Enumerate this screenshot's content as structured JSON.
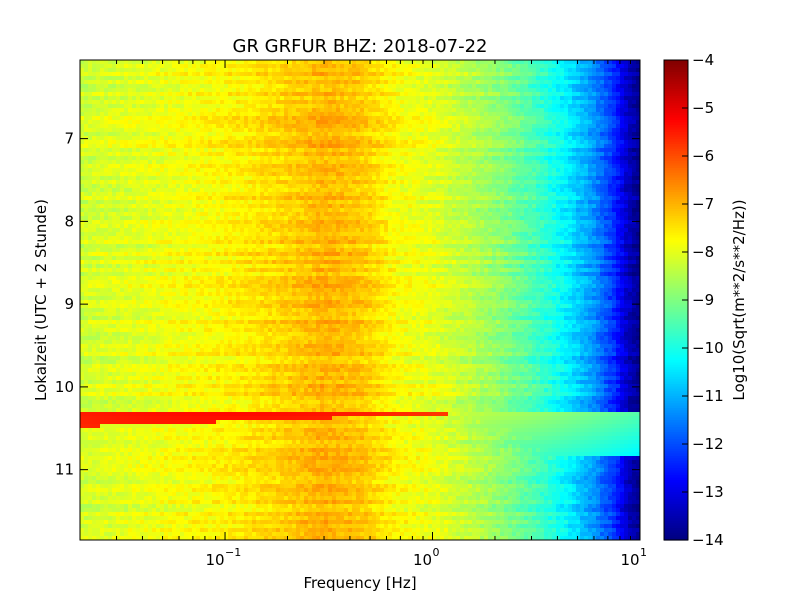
{
  "chart_data": {
    "type": "heatmap",
    "title": "GR GRFUR BHZ: 2018-07-22",
    "xlabel": "Frequency [Hz]",
    "ylabel": "Lokalzeit (UTC + 2 Stunde)",
    "x_scale": "log",
    "xlim": [
      0.02,
      10
    ],
    "x_ticks": [
      {
        "value": 0.1,
        "base": "10",
        "exp": "−1"
      },
      {
        "value": 1,
        "base": "10",
        "exp": "0"
      },
      {
        "value": 10,
        "base": "10",
        "exp": "1"
      }
    ],
    "ylim": [
      6.05,
      11.85
    ],
    "y_inverted": true,
    "y_ticks": [
      {
        "value": 7,
        "label": "7"
      },
      {
        "value": 8,
        "label": "8"
      },
      {
        "value": 9,
        "label": "9"
      },
      {
        "value": 10,
        "label": "10"
      },
      {
        "value": 11,
        "label": "11"
      }
    ],
    "colorbar": {
      "label": "Log10(Sqrt(m**2/s**2/Hz))",
      "range": [
        -14,
        -4
      ],
      "colormap": "jet",
      "ticks": [
        {
          "value": -4,
          "label": "−4"
        },
        {
          "value": -5,
          "label": "−5"
        },
        {
          "value": -6,
          "label": "−6"
        },
        {
          "value": -7,
          "label": "−7"
        },
        {
          "value": -8,
          "label": "−8"
        },
        {
          "value": -9,
          "label": "−9"
        },
        {
          "value": -10,
          "label": "−10"
        },
        {
          "value": -11,
          "label": "−11"
        },
        {
          "value": -12,
          "label": "−12"
        },
        {
          "value": -13,
          "label": "−13"
        },
        {
          "value": -14,
          "label": "−14"
        }
      ]
    },
    "spectrum_profile": {
      "freq_hz": [
        0.02,
        0.04,
        0.07,
        0.12,
        0.2,
        0.3,
        0.45,
        0.7,
        1.0,
        1.5,
        2.2,
        3.2,
        4.5,
        6.0,
        7.5,
        8.8,
        10.0
      ],
      "log10_amplitude": [
        -8.2,
        -8.0,
        -7.8,
        -7.6,
        -7.3,
        -7.0,
        -7.2,
        -7.8,
        -8.0,
        -8.4,
        -8.9,
        -9.6,
        -10.4,
        -11.3,
        -12.3,
        -13.4,
        -13.9
      ]
    },
    "event": {
      "time": 10.3,
      "duration": 0.55,
      "freq_max_hz": 2.5,
      "log10_amplitude_peak": -5.3
    },
    "grid": false,
    "legend": "none"
  }
}
